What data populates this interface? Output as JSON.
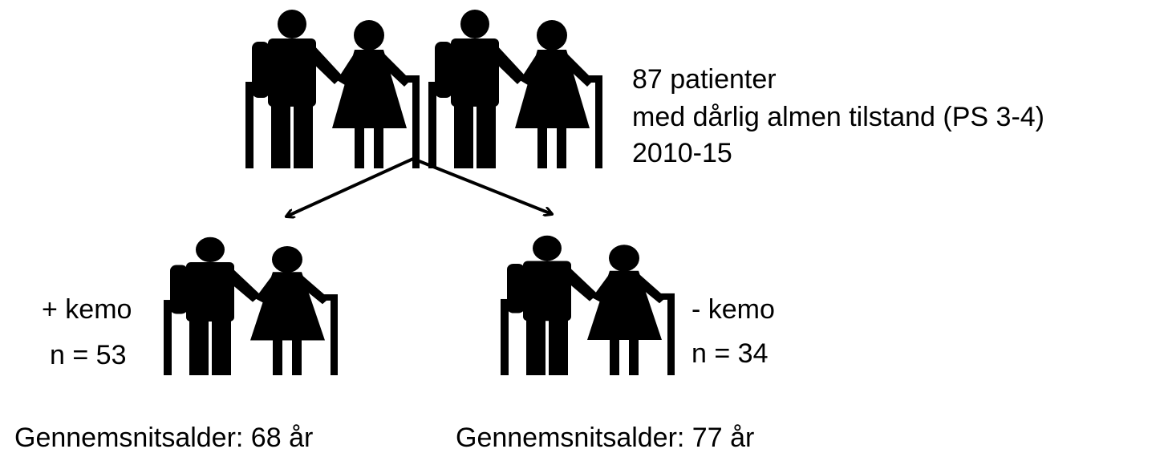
{
  "top": {
    "lines": [
      "87 patienter",
      "med dårlig almen tilstand (PS 3-4)",
      "2010-15"
    ]
  },
  "left": {
    "label": "+ kemo",
    "n": "n = 53",
    "age": "Gennemsnitsalder: 68 år"
  },
  "right": {
    "label": "- kemo",
    "n": "n = 34",
    "age": "Gennemsnitsalder: 77 år"
  }
}
